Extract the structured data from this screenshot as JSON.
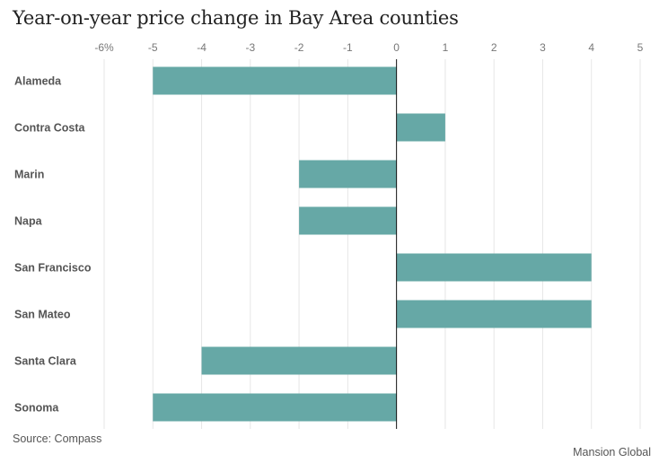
{
  "chart_data": {
    "type": "bar",
    "orientation": "horizontal",
    "title": "Year-on-year price change in Bay Area counties",
    "categories": [
      "Alameda",
      "Contra Costa",
      "Marin",
      "Napa",
      "San Francisco",
      "San Mateo",
      "Santa Clara",
      "Sonoma"
    ],
    "series": [
      {
        "name": "Year-on-year price change (%)",
        "values": [
          -5,
          1,
          -2,
          -2,
          4,
          4,
          -4,
          -5
        ],
        "color": "#66a8a6"
      }
    ],
    "xlim": [
      -6,
      5
    ],
    "xticks": [
      -6,
      -5,
      -4,
      -3,
      -2,
      -1,
      0,
      1,
      2,
      3,
      4,
      5
    ],
    "xtick_labels": [
      "-6%",
      "-5",
      "-4",
      "-3",
      "-2",
      "-1",
      "0",
      "1",
      "2",
      "3",
      "4",
      "5"
    ],
    "xlabel": "",
    "ylabel": "",
    "grid": true,
    "axis_position": "top",
    "source": "Source: Compass",
    "credit": "Mansion Global"
  }
}
